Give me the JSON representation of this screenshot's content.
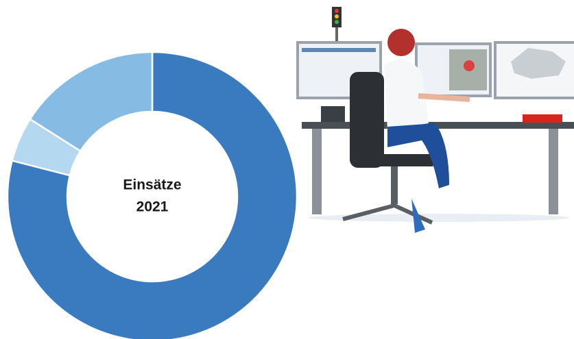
{
  "chart_data": {
    "type": "donut",
    "center_label": [
      "Einsätze",
      "2021"
    ],
    "categories": [
      null,
      null,
      null
    ],
    "values": [
      79,
      5,
      16
    ],
    "colors": [
      "#3a7bbf",
      "#b5d8f1",
      "#86bbe4"
    ]
  }
}
